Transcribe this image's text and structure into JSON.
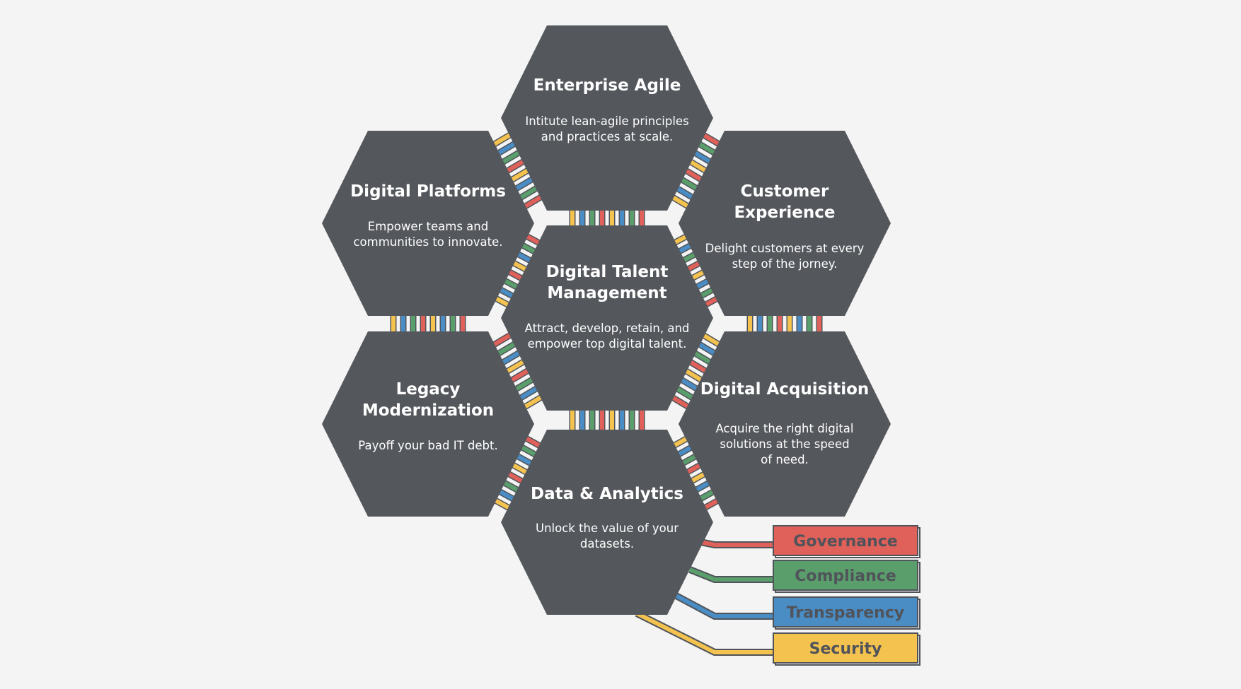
{
  "hexagons": [
    {
      "id": "enterprise-agile",
      "title": [
        "Enterprise Agile"
      ],
      "desc": [
        "Intitute lean-agile principles",
        "and practices at scale."
      ]
    },
    {
      "id": "digital-platforms",
      "title": [
        "Digital Platforms"
      ],
      "desc": [
        "Empower teams and",
        "communities to innovate."
      ]
    },
    {
      "id": "customer-experience",
      "title": [
        "Customer",
        "Experience"
      ],
      "desc": [
        "Delight customers at every",
        "step of the jorney."
      ]
    },
    {
      "id": "digital-talent-management",
      "title": [
        "Digital Talent",
        "Management"
      ],
      "desc": [
        "Attract, develop, retain, and",
        "empower top digital talent."
      ]
    },
    {
      "id": "legacy-modernization",
      "title": [
        "Legacy",
        "Modernization"
      ],
      "desc": [
        "Payoff your bad IT debt."
      ]
    },
    {
      "id": "digital-acquisition",
      "title": [
        "Digital Acquisition"
      ],
      "desc": [
        "Acquire the right digital",
        "solutions at the speed",
        "of need."
      ]
    },
    {
      "id": "data-analytics",
      "title": [
        "Data & Analytics"
      ],
      "desc": [
        "Unlock the value of your",
        "datasets."
      ]
    }
  ],
  "legend": [
    {
      "id": "governance",
      "label": "Governance",
      "color": "#e0605a"
    },
    {
      "id": "compliance",
      "label": "Compliance",
      "color": "#5a9e6b"
    },
    {
      "id": "transparency",
      "label": "Transparency",
      "color": "#4a8cc4"
    },
    {
      "id": "security",
      "label": "Security",
      "color": "#f4c24e"
    }
  ],
  "colors": {
    "hex_fill": "#54575c",
    "background": "#f4f4f4",
    "outline": "#50545a"
  }
}
